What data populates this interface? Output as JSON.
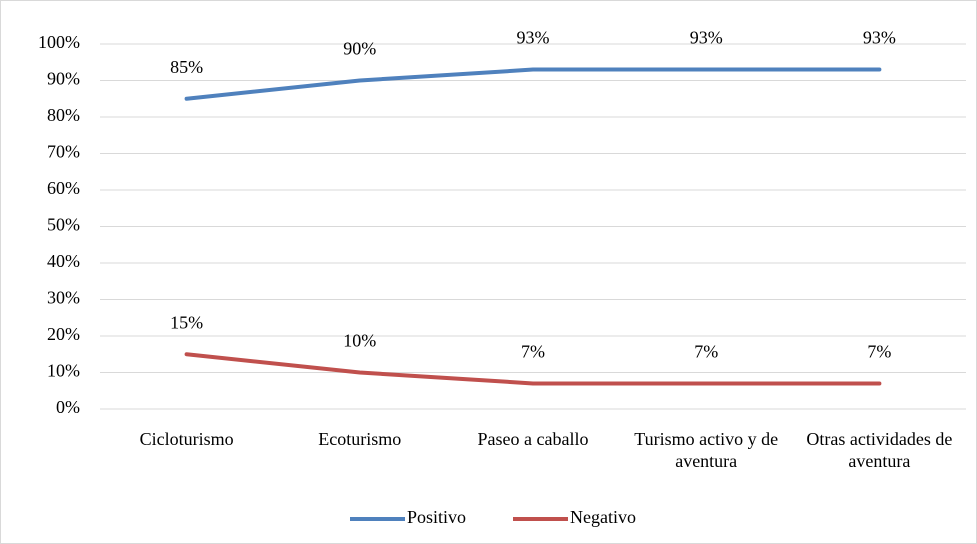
{
  "chart_data": {
    "type": "line",
    "categories": [
      "Cicloturismo",
      "Ecoturismo",
      "Paseo a caballo",
      "Turismo activo y de aventura",
      "Otras actividades de aventura"
    ],
    "series": [
      {
        "name": "Positivo",
        "color": "#4f81bd",
        "values": [
          85,
          90,
          93,
          93,
          93
        ],
        "value_labels": [
          "85%",
          "90%",
          "93%",
          "93%",
          "93%"
        ]
      },
      {
        "name": "Negativo",
        "color": "#c0504d",
        "values": [
          15,
          10,
          7,
          7,
          7
        ],
        "value_labels": [
          "15%",
          "10%",
          "7%",
          "7%",
          "7%"
        ]
      }
    ],
    "ylim": [
      0,
      100
    ],
    "yticks": [
      {
        "value": 0,
        "label": "0%"
      },
      {
        "value": 10,
        "label": "10%"
      },
      {
        "value": 20,
        "label": "20%"
      },
      {
        "value": 30,
        "label": "30%"
      },
      {
        "value": 40,
        "label": "40%"
      },
      {
        "value": 50,
        "label": "50%"
      },
      {
        "value": 60,
        "label": "60%"
      },
      {
        "value": 70,
        "label": "70%"
      },
      {
        "value": 80,
        "label": "80%"
      },
      {
        "value": 90,
        "label": "90%"
      },
      {
        "value": 100,
        "label": "100%"
      }
    ],
    "grid": true,
    "legend": "bottom"
  }
}
